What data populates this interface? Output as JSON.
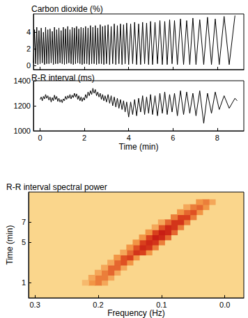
{
  "chart_data": [
    {
      "type": "line",
      "title": "Carbon dioxide (%)",
      "color": "#000000",
      "x": [
        -0.3,
        -0.25,
        -0.2,
        -0.15,
        -0.1,
        -0.05,
        0,
        0.05,
        0.1,
        0.15,
        0.2,
        0.25,
        0.3,
        0.35,
        0.4,
        0.45,
        0.5,
        0.55,
        0.6,
        0.65,
        0.7,
        0.75,
        0.8,
        0.85,
        0.9,
        0.95,
        1.0,
        1.05,
        1.1,
        1.15,
        1.2,
        1.25,
        1.3,
        1.35,
        1.4,
        1.45,
        1.5,
        1.55,
        1.6,
        1.65,
        1.7,
        1.75,
        1.8,
        1.85,
        1.9,
        1.95,
        2.0,
        2.055,
        2.11,
        2.165,
        2.22,
        2.275,
        2.33,
        2.385,
        2.44,
        2.495,
        2.55,
        2.605,
        2.66,
        2.715,
        2.77,
        2.825,
        2.88,
        2.935,
        3.0,
        3.07,
        3.14,
        3.21,
        3.28,
        3.35,
        3.42,
        3.49,
        3.56,
        3.63,
        3.7,
        3.77,
        3.84,
        3.91,
        4.0,
        4.09,
        4.18,
        4.27,
        4.36,
        4.45,
        4.54,
        4.63,
        4.72,
        4.81,
        4.9,
        4.99,
        5.08,
        5.19,
        5.3,
        5.41,
        5.52,
        5.63,
        5.74,
        5.85,
        5.96,
        6.07,
        6.2,
        6.34,
        6.48,
        6.62,
        6.76,
        6.9,
        7.04,
        7.21,
        7.39,
        7.56,
        7.74,
        7.91,
        8.09,
        8.31,
        8.54,
        8.8
      ],
      "values": [
        0.3,
        4.3,
        0.2,
        4.6,
        0.1,
        4.2,
        0.2,
        4.5,
        0.3,
        4.0,
        0.1,
        4.6,
        0.2,
        4.3,
        0.2,
        4.4,
        0.3,
        4.1,
        0.1,
        4.6,
        0.2,
        4.3,
        0.2,
        4.5,
        0.3,
        4.2,
        0.2,
        4.6,
        0.1,
        4.4,
        0.2,
        4.7,
        0.3,
        4.3,
        0.2,
        4.6,
        0.1,
        4.5,
        0.2,
        4.7,
        0.3,
        4.4,
        0.2,
        4.6,
        0.1,
        4.5,
        0.2,
        4.7,
        0.2,
        4.5,
        0.1,
        4.8,
        0.2,
        4.6,
        0.2,
        4.8,
        0.1,
        4.5,
        0.2,
        4.9,
        0.2,
        4.7,
        0.1,
        4.8,
        0.2,
        4.9,
        0.1,
        4.7,
        0.2,
        5.0,
        0.1,
        4.8,
        0.2,
        5.0,
        0.1,
        4.9,
        0.2,
        5.1,
        0.1,
        5.0,
        0.2,
        5.2,
        0.1,
        5.0,
        0.1,
        5.2,
        0.2,
        5.1,
        0.1,
        5.3,
        0.1,
        5.2,
        0.2,
        5.4,
        0.1,
        5.3,
        0.1,
        5.5,
        0.2,
        5.4,
        0.1,
        5.6,
        0.1,
        5.4,
        0.1,
        5.7,
        0.1,
        5.5,
        0.1,
        5.8,
        0.1,
        5.6,
        0.1,
        5.9,
        0.1,
        6.0
      ],
      "xlim": [
        -0.3,
        9.2
      ],
      "xticks": [
        0,
        2,
        4,
        6,
        8
      ],
      "ylim": [
        -0.5,
        6.2
      ],
      "yticks": [
        0,
        2,
        4
      ],
      "tick_labels": "y"
    },
    {
      "type": "line",
      "title": "R-R interval (ms)",
      "x_label": "Time (min)",
      "color": "#000000",
      "x": [
        0,
        0.05,
        0.1,
        0.15,
        0.2,
        0.25,
        0.3,
        0.35,
        0.4,
        0.45,
        0.5,
        0.55,
        0.6,
        0.65,
        0.7,
        0.75,
        0.8,
        0.85,
        0.9,
        0.95,
        1.0,
        1.05,
        1.1,
        1.15,
        1.2,
        1.25,
        1.3,
        1.35,
        1.4,
        1.45,
        1.5,
        1.55,
        1.6,
        1.65,
        1.7,
        1.75,
        1.8,
        1.85,
        1.9,
        1.95,
        2.0,
        2.055,
        2.11,
        2.165,
        2.22,
        2.275,
        2.33,
        2.385,
        2.44,
        2.495,
        2.55,
        2.605,
        2.66,
        2.715,
        2.77,
        2.825,
        2.88,
        2.935,
        3.0,
        3.07,
        3.14,
        3.21,
        3.28,
        3.35,
        3.42,
        3.49,
        3.56,
        3.63,
        3.7,
        3.77,
        3.84,
        3.91,
        4.0,
        4.09,
        4.18,
        4.27,
        4.36,
        4.45,
        4.54,
        4.63,
        4.72,
        4.81,
        4.9,
        4.99,
        5.08,
        5.19,
        5.3,
        5.41,
        5.52,
        5.63,
        5.74,
        5.85,
        5.96,
        6.07,
        6.2,
        6.34,
        6.48,
        6.62,
        6.76,
        6.9,
        7.04,
        7.21,
        7.39,
        7.56,
        7.74,
        7.91,
        8.09,
        8.31,
        8.54,
        8.8,
        8.9
      ],
      "values": [
        1250,
        1270,
        1240,
        1275,
        1255,
        1290,
        1260,
        1280,
        1245,
        1270,
        1230,
        1265,
        1240,
        1285,
        1250,
        1275,
        1235,
        1260,
        1230,
        1250,
        1225,
        1255,
        1240,
        1275,
        1250,
        1280,
        1260,
        1290,
        1255,
        1285,
        1265,
        1300,
        1270,
        1295,
        1250,
        1280,
        1240,
        1270,
        1235,
        1265,
        1245,
        1290,
        1260,
        1310,
        1280,
        1320,
        1290,
        1340,
        1300,
        1330,
        1280,
        1310,
        1270,
        1300,
        1250,
        1290,
        1240,
        1280,
        1230,
        1290,
        1220,
        1280,
        1200,
        1270,
        1190,
        1260,
        1180,
        1250,
        1170,
        1240,
        1150,
        1230,
        1110,
        1230,
        1130,
        1250,
        1120,
        1260,
        1150,
        1280,
        1130,
        1270,
        1140,
        1290,
        1130,
        1280,
        1120,
        1300,
        1140,
        1310,
        1130,
        1290,
        1150,
        1300,
        1120,
        1320,
        1130,
        1310,
        1140,
        1300,
        1120,
        1320,
        1060,
        1300,
        1140,
        1310,
        1170,
        1280,
        1180,
        1260,
        1240
      ],
      "xlim": [
        -0.3,
        9.2
      ],
      "xticks": [
        0,
        2,
        4,
        6,
        8
      ],
      "ylim": [
        1000,
        1400
      ],
      "yticks": [
        1000,
        1200,
        1400
      ]
    },
    {
      "type": "heatmap",
      "title": "R-R interval spectral power",
      "x_label": "Frequency (Hz)",
      "y_label": "Time (min)",
      "cells": [
        [
          0.19,
          1.0,
          2
        ],
        [
          0.2,
          1.0,
          4
        ],
        [
          0.21,
          1.0,
          3
        ],
        [
          0.22,
          1.0,
          1
        ],
        [
          0.18,
          1.5,
          2
        ],
        [
          0.19,
          1.5,
          4
        ],
        [
          0.2,
          1.5,
          4
        ],
        [
          0.21,
          1.5,
          2
        ],
        [
          0.17,
          2.0,
          2
        ],
        [
          0.18,
          2.0,
          5
        ],
        [
          0.19,
          2.0,
          4
        ],
        [
          0.2,
          2.0,
          2
        ],
        [
          0.16,
          2.5,
          2
        ],
        [
          0.17,
          2.5,
          5
        ],
        [
          0.18,
          2.5,
          5
        ],
        [
          0.19,
          2.5,
          2
        ],
        [
          0.15,
          3.0,
          3
        ],
        [
          0.16,
          3.0,
          6
        ],
        [
          0.17,
          3.0,
          5
        ],
        [
          0.18,
          3.0,
          2
        ],
        [
          0.14,
          3.5,
          3
        ],
        [
          0.15,
          3.5,
          7
        ],
        [
          0.16,
          3.5,
          6
        ],
        [
          0.17,
          3.5,
          3
        ],
        [
          0.12,
          4.0,
          3
        ],
        [
          0.13,
          4.0,
          7
        ],
        [
          0.14,
          4.0,
          8
        ],
        [
          0.15,
          4.0,
          5
        ],
        [
          0.16,
          4.0,
          2
        ],
        [
          0.11,
          4.5,
          4
        ],
        [
          0.12,
          4.5,
          8
        ],
        [
          0.13,
          4.5,
          9
        ],
        [
          0.14,
          4.5,
          6
        ],
        [
          0.15,
          4.5,
          3
        ],
        [
          0.1,
          5.0,
          4
        ],
        [
          0.11,
          5.0,
          8
        ],
        [
          0.12,
          5.0,
          9
        ],
        [
          0.13,
          5.0,
          7
        ],
        [
          0.14,
          5.0,
          3
        ],
        [
          0.09,
          5.5,
          5
        ],
        [
          0.1,
          5.5,
          9
        ],
        [
          0.11,
          5.5,
          10
        ],
        [
          0.12,
          5.5,
          7
        ],
        [
          0.13,
          5.5,
          3
        ],
        [
          0.08,
          6.0,
          5
        ],
        [
          0.09,
          6.0,
          9
        ],
        [
          0.1,
          6.0,
          10
        ],
        [
          0.11,
          6.0,
          7
        ],
        [
          0.12,
          6.0,
          3
        ],
        [
          0.07,
          6.5,
          4
        ],
        [
          0.08,
          6.5,
          8
        ],
        [
          0.09,
          6.5,
          9
        ],
        [
          0.1,
          6.5,
          6
        ],
        [
          0.11,
          6.5,
          2
        ],
        [
          0.06,
          7.0,
          4
        ],
        [
          0.07,
          7.0,
          8
        ],
        [
          0.08,
          7.0,
          8
        ],
        [
          0.09,
          7.0,
          5
        ],
        [
          0.1,
          7.0,
          2
        ],
        [
          0.05,
          7.5,
          4
        ],
        [
          0.06,
          7.5,
          7
        ],
        [
          0.07,
          7.5,
          7
        ],
        [
          0.08,
          7.5,
          4
        ],
        [
          0.04,
          8.0,
          3
        ],
        [
          0.05,
          8.0,
          6
        ],
        [
          0.06,
          8.0,
          5
        ],
        [
          0.07,
          8.0,
          3
        ],
        [
          0.03,
          8.5,
          3
        ],
        [
          0.04,
          8.5,
          5
        ],
        [
          0.05,
          8.5,
          4
        ],
        [
          0.06,
          8.5,
          2
        ],
        [
          0.02,
          9.0,
          2
        ],
        [
          0.03,
          9.0,
          4
        ],
        [
          0.04,
          9.0,
          3
        ]
      ],
      "xlim": [
        0.31,
        -0.03
      ],
      "xticks": [
        {
          "value": 0,
          "label": "0.0"
        },
        0.1,
        0.2,
        0.3
      ],
      "ylim": [
        -0.5,
        10
      ],
      "yticks": [
        1,
        5,
        7
      ]
    }
  ]
}
